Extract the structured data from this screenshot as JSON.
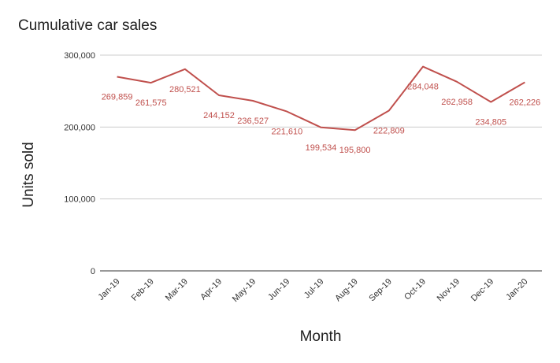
{
  "chart_data": {
    "type": "line",
    "title": "Cumulative car sales",
    "xlabel": "Month",
    "ylabel": "Units sold",
    "categories": [
      "Jan-19",
      "Feb-19",
      "Mar-19",
      "Apr-19",
      "May-19",
      "Jun-19",
      "Jul-19",
      "Aug-19",
      "Sep-19",
      "Oct-19",
      "Nov-19",
      "Dec-19",
      "Jan-20"
    ],
    "values": [
      269859,
      261575,
      280521,
      244152,
      236527,
      221610,
      199534,
      195800,
      222809,
      284048,
      262958,
      234805,
      262226
    ],
    "value_labels": [
      "269,859",
      "261,575",
      "280,521",
      "244,152",
      "236,527",
      "221,610",
      "199,534",
      "195,800",
      "222,809",
      "284,048",
      "262,958",
      "234,805",
      "262,226"
    ],
    "ylim": [
      0,
      300000
    ],
    "yticks": [
      0,
      100000,
      200000,
      300000
    ],
    "ytick_labels": [
      "0",
      "100,000",
      "200,000",
      "300,000"
    ],
    "grid": true,
    "colors": {
      "line": "#c0504d",
      "grid": "#cccccc",
      "axis": "#333333"
    }
  }
}
